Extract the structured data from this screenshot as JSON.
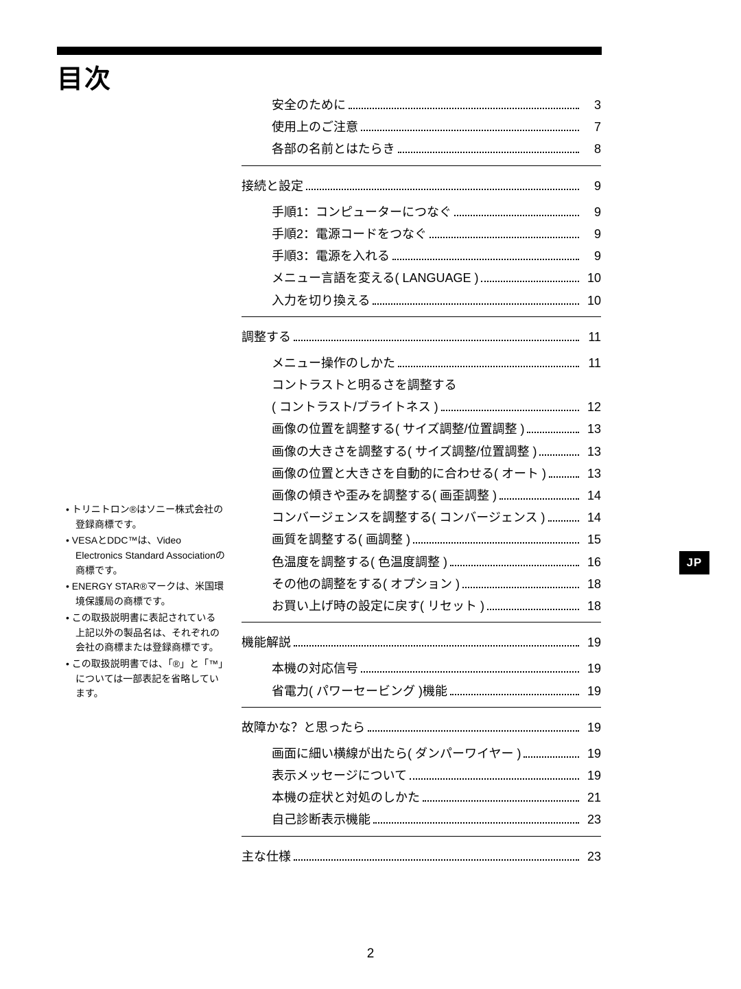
{
  "title": "目次",
  "side_tab": "JP",
  "page_number": "2",
  "toc": {
    "top_items": [
      {
        "label": "安全のために",
        "page": "3"
      },
      {
        "label": "使用上のご注意",
        "page": "7"
      },
      {
        "label": "各部の名前とはたらき",
        "page": "8"
      }
    ],
    "sections": [
      {
        "heading": {
          "label": "接続と設定",
          "page": "9"
        },
        "items": [
          {
            "label": "手順1：コンピューターにつなぐ",
            "page": "9"
          },
          {
            "label": "手順2：電源コードをつなぐ",
            "page": "9"
          },
          {
            "label": "手順3：電源を入れる",
            "page": "9"
          },
          {
            "label": "メニュー言語を変える( LANGUAGE )",
            "page": "10"
          },
          {
            "label": "入力を切り換える",
            "page": "10"
          }
        ]
      },
      {
        "heading": {
          "label": "調整する",
          "page": "11"
        },
        "items": [
          {
            "label": "メニュー操作のしかた",
            "page": "11"
          },
          {
            "label": "コントラストと明るさを調整する",
            "page": null
          },
          {
            "label": "( コントラスト/ブライトネス )",
            "page": "12"
          },
          {
            "label": "画像の位置を調整する( サイズ調整/位置調整 )",
            "page": "13"
          },
          {
            "label": "画像の大きさを調整する( サイズ調整/位置調整 )",
            "page": "13"
          },
          {
            "label": "画像の位置と大きさを自動的に合わせる( オート )",
            "page": "13"
          },
          {
            "label": "画像の傾きや歪みを調整する( 画歪調整 )",
            "page": "14"
          },
          {
            "label": "コンバージェンスを調整する( コンバージェンス )",
            "page": "14"
          },
          {
            "label": "画質を調整する( 画調整 )",
            "page": "15"
          },
          {
            "label": "色温度を調整する( 色温度調整 )",
            "page": "16"
          },
          {
            "label": "その他の調整をする( オプション )",
            "page": "18"
          },
          {
            "label": "お買い上げ時の設定に戻す( リセット )",
            "page": "18"
          }
        ]
      },
      {
        "heading": {
          "label": "機能解説",
          "page": "19"
        },
        "items": [
          {
            "label": "本機の対応信号",
            "page": "19"
          },
          {
            "label": "省電力( パワーセービング )機能",
            "page": "19"
          }
        ]
      },
      {
        "heading": {
          "label": "故障かな？と思ったら",
          "page": "19"
        },
        "items": [
          {
            "label": "画面に細い横線が出たら( ダンパーワイヤー )",
            "page": "19"
          },
          {
            "label": "表示メッセージについて",
            "page": "19"
          },
          {
            "label": "本機の症状と対処のしかた",
            "page": "21"
          },
          {
            "label": "自己診断表示機能",
            "page": "23"
          }
        ]
      },
      {
        "heading": {
          "label": "主な仕様",
          "page": "23"
        },
        "items": []
      }
    ]
  },
  "footnotes": [
    "トリニトロン®はソニー株式会社の登録商標です。",
    "VESAとDDC™は、Video Electronics Standard Associationの商標です。",
    "ENERGY STAR®マークは、米国環境保護局の商標です。",
    "この取扱説明書に表記されている上記以外の製品名は、それぞれの会社の商標または登録商標です。",
    "この取扱説明書では、「®」と「™」については一部表記を省略しています。"
  ]
}
